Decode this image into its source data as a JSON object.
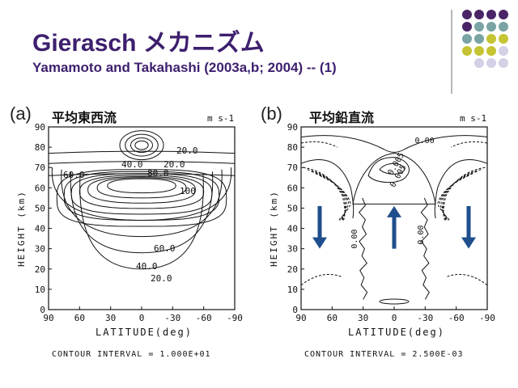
{
  "slide": {
    "title": "Gierasch メカニズム",
    "subtitle": "Yamamoto and Takahashi (2003a,b; 2004) -- (1)"
  },
  "decor": {
    "colors": {
      "purple": "#4a2466",
      "teal": "#7aa3a3",
      "yellow": "#c5c432",
      "lavender": "#d4d0e6"
    }
  },
  "panels": [
    {
      "label": "(a)",
      "title": "平均東西流",
      "units": "m s-1",
      "ylabel": "HEIGHT (km)",
      "xlabel": "LATITUDE(deg)",
      "contour_interval": "CONTOUR INTERVAL = 1.000E+01",
      "yticks": [
        "0",
        "10",
        "20",
        "30",
        "40",
        "50",
        "60",
        "70",
        "80",
        "90"
      ],
      "xticks": [
        "90",
        "60",
        "30",
        "0",
        "-30",
        "-60",
        "-90"
      ],
      "contour_labels": [
        "20.0",
        "40.0",
        "20.0",
        "60.0",
        "80.0",
        "100",
        "60.0",
        "40.0",
        "20.0"
      ]
    },
    {
      "label": "(b)",
      "title": "平均鉛直流",
      "units": "m s-1",
      "ylabel": "HEIGHT (km)",
      "xlabel": "LATITUDE(deg)",
      "contour_interval": "CONTOUR INTERVAL = 2.500E-03",
      "yticks": [
        "0",
        "10",
        "20",
        "30",
        "40",
        "50",
        "60",
        "70",
        "80",
        "90"
      ],
      "xticks": [
        "90",
        "60",
        "30",
        "0",
        "-30",
        "-60",
        "-90"
      ],
      "contour_labels": [
        "0.00",
        "0.00",
        "0.005",
        "0.005",
        "0.00"
      ]
    }
  ]
}
